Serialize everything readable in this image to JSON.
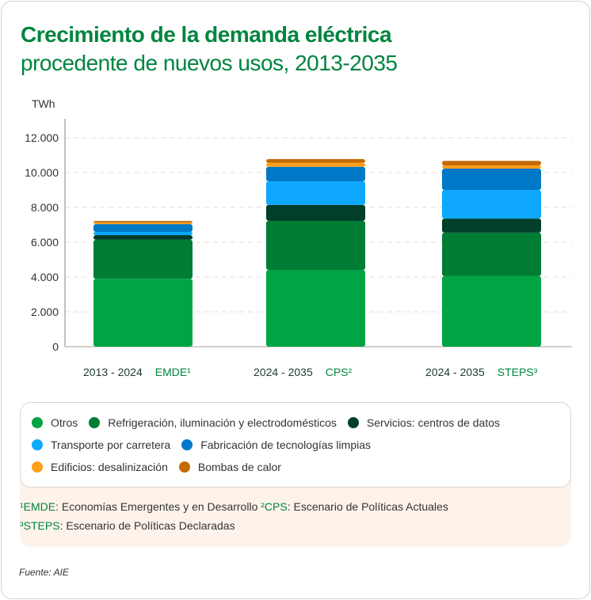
{
  "title_bold": "Crecimiento de la demanda eléctrica",
  "title_rest": "procedente de nuevos usos, 2013-2035",
  "chart_data": {
    "type": "bar",
    "stacked": true,
    "ylabel": "TWh",
    "ylim": [
      0,
      13000
    ],
    "yticks": [
      0,
      2000,
      4000,
      6000,
      8000,
      10000,
      12000
    ],
    "ytick_labels": [
      "0",
      "2.000",
      "4.000",
      "6.000",
      "8.000",
      "10.000",
      "12.000"
    ],
    "grid": true,
    "legend_placement": "bottom",
    "categories": [
      {
        "period": "2013 - 2024",
        "scenario": "EMDE¹"
      },
      {
        "period": "2024 - 2035",
        "scenario": "CPS²"
      },
      {
        "period": "2024 - 2035",
        "scenario": "STEPS³"
      }
    ],
    "series": [
      {
        "name": "Otros",
        "color": "#00a443",
        "values": [
          3900,
          4410,
          4050
        ]
      },
      {
        "name": "Refrigeración, iluminación y electrodomésticos",
        "color": "#007d34",
        "values": [
          2240,
          2820,
          2500
        ]
      },
      {
        "name": "Servicios: centros de datos",
        "color": "#003f29",
        "values": [
          270,
          910,
          810
        ]
      },
      {
        "name": "Transporte por carretera",
        "color": "#0ea8ff",
        "values": [
          180,
          1360,
          1640
        ]
      },
      {
        "name": "Fabricación de tecnologías limpias",
        "color": "#0078c8",
        "values": [
          450,
          830,
          1230
        ]
      },
      {
        "name": "Edificios: desalinización",
        "color": "#ff9f1c",
        "values": [
          100,
          230,
          180
        ]
      },
      {
        "name": "Bombas de calor",
        "color": "#c46a00",
        "values": [
          80,
          210,
          260
        ]
      }
    ]
  },
  "notes": {
    "n1_abbr": "¹EMDE",
    "n1_text": ": Economías Emergentes y en Desarrollo ",
    "n2_abbr": "²CPS",
    "n2_text": ": Escenario de Políticas Actuales",
    "n3_abbr": "³STEPS",
    "n3_text": ": Escenario de Políticas Declaradas"
  },
  "source": "Fuente: AIE"
}
